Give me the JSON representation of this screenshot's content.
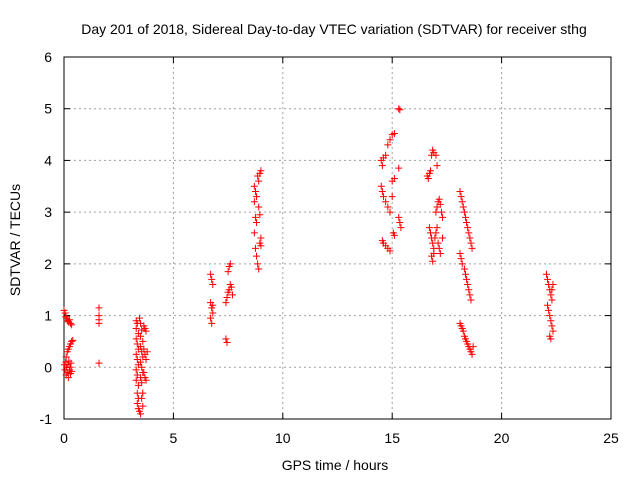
{
  "chart_data": {
    "type": "scatter",
    "title": "Day 201 of 2018, Sidereal Day-to-day VTEC variation (SDTVAR) for receiver sthg",
    "xlabel": "GPS time / hours",
    "ylabel": "SDTVAR / TECUs",
    "xlim": [
      0,
      25
    ],
    "ylim": [
      -1,
      6
    ],
    "xticks": [
      0,
      5,
      10,
      15,
      20,
      25
    ],
    "yticks": [
      -1,
      0,
      1,
      2,
      3,
      4,
      5,
      6
    ],
    "grid": true,
    "marker": "+",
    "color": "#ff0000",
    "series": [
      {
        "name": "SDTVAR",
        "points": [
          [
            0.0,
            1.1
          ],
          [
            0.05,
            1.05
          ],
          [
            0.08,
            0.98
          ],
          [
            0.12,
            0.95
          ],
          [
            0.15,
            0.9
          ],
          [
            0.2,
            0.88
          ],
          [
            0.25,
            0.92
          ],
          [
            0.3,
            0.85
          ],
          [
            0.35,
            0.82
          ],
          [
            0.02,
            0.05
          ],
          [
            0.05,
            -0.05
          ],
          [
            0.08,
            0.1
          ],
          [
            0.1,
            -0.15
          ],
          [
            0.12,
            0.0
          ],
          [
            0.15,
            -0.1
          ],
          [
            0.18,
            0.05
          ],
          [
            0.2,
            -0.2
          ],
          [
            0.22,
            0.12
          ],
          [
            0.25,
            -0.05
          ],
          [
            0.28,
            0.0
          ],
          [
            0.3,
            -0.12
          ],
          [
            0.32,
            0.08
          ],
          [
            0.35,
            -0.08
          ],
          [
            0.1,
            0.2
          ],
          [
            0.15,
            0.3
          ],
          [
            0.2,
            0.35
          ],
          [
            0.25,
            0.4
          ],
          [
            0.3,
            0.45
          ],
          [
            0.35,
            0.5
          ],
          [
            0.4,
            0.52
          ],
          [
            1.6,
            1.15
          ],
          [
            1.6,
            1.0
          ],
          [
            1.6,
            0.92
          ],
          [
            1.6,
            0.85
          ],
          [
            1.6,
            0.08
          ],
          [
            3.3,
            0.9
          ],
          [
            3.35,
            0.85
          ],
          [
            3.3,
            0.75
          ],
          [
            3.4,
            0.65
          ],
          [
            3.3,
            0.55
          ],
          [
            3.35,
            0.45
          ],
          [
            3.4,
            0.35
          ],
          [
            3.3,
            0.25
          ],
          [
            3.35,
            0.15
          ],
          [
            3.4,
            0.05
          ],
          [
            3.3,
            -0.05
          ],
          [
            3.35,
            -0.15
          ],
          [
            3.3,
            -0.25
          ],
          [
            3.4,
            -0.35
          ],
          [
            3.35,
            -0.5
          ],
          [
            3.4,
            -0.6
          ],
          [
            3.35,
            -0.7
          ],
          [
            3.4,
            -0.8
          ],
          [
            3.45,
            -0.85
          ],
          [
            3.5,
            -0.9
          ],
          [
            3.45,
            0.95
          ],
          [
            3.5,
            0.85
          ],
          [
            3.55,
            0.72
          ],
          [
            3.5,
            0.6
          ],
          [
            3.6,
            0.5
          ],
          [
            3.5,
            0.4
          ],
          [
            3.55,
            0.3
          ],
          [
            3.6,
            0.2
          ],
          [
            3.5,
            0.1
          ],
          [
            3.55,
            0.0
          ],
          [
            3.6,
            -0.1
          ],
          [
            3.5,
            -0.2
          ],
          [
            3.55,
            -0.3
          ],
          [
            3.6,
            -0.5
          ],
          [
            3.55,
            -0.6
          ],
          [
            3.6,
            -0.75
          ],
          [
            3.65,
            0.8
          ],
          [
            3.7,
            0.75
          ],
          [
            3.75,
            0.7
          ],
          [
            3.65,
            0.35
          ],
          [
            3.7,
            0.25
          ],
          [
            3.75,
            0.15
          ],
          [
            3.65,
            -0.1
          ],
          [
            3.7,
            -0.2
          ],
          [
            3.75,
            -0.25
          ],
          [
            3.8,
            0.3
          ],
          [
            6.7,
            1.8
          ],
          [
            6.75,
            1.7
          ],
          [
            6.8,
            1.6
          ],
          [
            6.7,
            1.25
          ],
          [
            6.75,
            1.15
          ],
          [
            6.8,
            1.05
          ],
          [
            6.7,
            0.95
          ],
          [
            6.75,
            0.85
          ],
          [
            6.8,
            1.2
          ],
          [
            7.4,
            0.55
          ],
          [
            7.45,
            0.48
          ],
          [
            7.4,
            1.25
          ],
          [
            7.45,
            1.35
          ],
          [
            7.5,
            1.45
          ],
          [
            7.55,
            1.5
          ],
          [
            7.6,
            1.6
          ],
          [
            7.5,
            1.85
          ],
          [
            7.55,
            1.95
          ],
          [
            7.6,
            2.0
          ],
          [
            7.7,
            1.4
          ],
          [
            7.65,
            1.55
          ],
          [
            8.7,
            3.5
          ],
          [
            8.75,
            3.4
          ],
          [
            8.8,
            3.3
          ],
          [
            8.7,
            3.2
          ],
          [
            8.75,
            2.9
          ],
          [
            8.8,
            2.8
          ],
          [
            8.7,
            2.6
          ],
          [
            8.75,
            2.3
          ],
          [
            8.8,
            2.15
          ],
          [
            8.85,
            2.0
          ],
          [
            8.9,
            1.9
          ],
          [
            8.85,
            3.7
          ],
          [
            8.9,
            3.6
          ],
          [
            8.95,
            3.75
          ],
          [
            9.0,
            3.8
          ],
          [
            8.9,
            3.1
          ],
          [
            8.95,
            2.95
          ],
          [
            9.0,
            2.5
          ],
          [
            8.95,
            2.4
          ],
          [
            9.0,
            2.35
          ],
          [
            14.5,
            4.0
          ],
          [
            14.55,
            3.9
          ],
          [
            14.6,
            4.05
          ],
          [
            14.7,
            4.1
          ],
          [
            14.5,
            3.5
          ],
          [
            14.55,
            3.4
          ],
          [
            14.6,
            3.3
          ],
          [
            14.7,
            3.2
          ],
          [
            14.8,
            3.1
          ],
          [
            14.9,
            3.0
          ],
          [
            14.55,
            2.45
          ],
          [
            14.6,
            2.4
          ],
          [
            14.7,
            2.35
          ],
          [
            14.8,
            2.3
          ],
          [
            14.9,
            2.25
          ],
          [
            14.8,
            4.3
          ],
          [
            14.9,
            4.4
          ],
          [
            15.0,
            4.5
          ],
          [
            15.1,
            4.52
          ],
          [
            15.0,
            3.6
          ],
          [
            15.1,
            3.65
          ],
          [
            15.0,
            3.3
          ],
          [
            15.05,
            2.6
          ],
          [
            15.1,
            2.55
          ],
          [
            15.3,
            5.0
          ],
          [
            15.35,
            4.98
          ],
          [
            15.3,
            3.85
          ],
          [
            15.3,
            2.9
          ],
          [
            15.35,
            2.8
          ],
          [
            15.4,
            2.7
          ],
          [
            16.6,
            3.7
          ],
          [
            16.65,
            3.65
          ],
          [
            16.7,
            3.75
          ],
          [
            16.75,
            3.8
          ],
          [
            16.8,
            4.1
          ],
          [
            16.85,
            4.2
          ],
          [
            16.9,
            4.15
          ],
          [
            17.0,
            4.1
          ],
          [
            17.05,
            3.9
          ],
          [
            16.7,
            2.7
          ],
          [
            16.75,
            2.6
          ],
          [
            16.8,
            2.5
          ],
          [
            16.85,
            2.4
          ],
          [
            16.9,
            2.3
          ],
          [
            16.8,
            2.15
          ],
          [
            16.85,
            2.05
          ],
          [
            16.9,
            2.2
          ],
          [
            16.95,
            2.5
          ],
          [
            17.0,
            2.6
          ],
          [
            17.05,
            2.7
          ],
          [
            17.1,
            2.4
          ],
          [
            17.15,
            2.3
          ],
          [
            17.2,
            2.2
          ],
          [
            17.0,
            3.0
          ],
          [
            17.05,
            3.1
          ],
          [
            17.1,
            3.2
          ],
          [
            17.15,
            3.25
          ],
          [
            17.2,
            3.15
          ],
          [
            17.25,
            3.0
          ],
          [
            17.3,
            2.9
          ],
          [
            17.3,
            2.5
          ],
          [
            18.1,
            3.4
          ],
          [
            18.15,
            3.3
          ],
          [
            18.2,
            3.2
          ],
          [
            18.25,
            3.1
          ],
          [
            18.3,
            3.0
          ],
          [
            18.35,
            2.9
          ],
          [
            18.4,
            2.8
          ],
          [
            18.45,
            2.7
          ],
          [
            18.5,
            2.6
          ],
          [
            18.55,
            2.5
          ],
          [
            18.6,
            2.4
          ],
          [
            18.65,
            2.3
          ],
          [
            18.1,
            2.2
          ],
          [
            18.15,
            2.1
          ],
          [
            18.2,
            2.0
          ],
          [
            18.3,
            1.9
          ],
          [
            18.35,
            1.8
          ],
          [
            18.4,
            1.7
          ],
          [
            18.45,
            1.6
          ],
          [
            18.5,
            1.5
          ],
          [
            18.55,
            1.4
          ],
          [
            18.6,
            1.3
          ],
          [
            18.1,
            0.85
          ],
          [
            18.15,
            0.8
          ],
          [
            18.2,
            0.75
          ],
          [
            18.25,
            0.7
          ],
          [
            18.3,
            0.6
          ],
          [
            18.35,
            0.55
          ],
          [
            18.4,
            0.5
          ],
          [
            18.45,
            0.45
          ],
          [
            18.5,
            0.4
          ],
          [
            18.55,
            0.35
          ],
          [
            18.6,
            0.3
          ],
          [
            18.65,
            0.25
          ],
          [
            18.7,
            0.4
          ],
          [
            22.05,
            1.8
          ],
          [
            22.1,
            1.7
          ],
          [
            22.15,
            1.6
          ],
          [
            22.2,
            1.5
          ],
          [
            22.25,
            1.4
          ],
          [
            22.3,
            1.3
          ],
          [
            22.1,
            1.2
          ],
          [
            22.15,
            1.1
          ],
          [
            22.2,
            1.0
          ],
          [
            22.25,
            0.9
          ],
          [
            22.3,
            0.8
          ],
          [
            22.35,
            0.7
          ],
          [
            22.2,
            0.6
          ],
          [
            22.25,
            0.55
          ],
          [
            22.3,
            1.5
          ],
          [
            22.35,
            1.6
          ]
        ]
      }
    ]
  }
}
